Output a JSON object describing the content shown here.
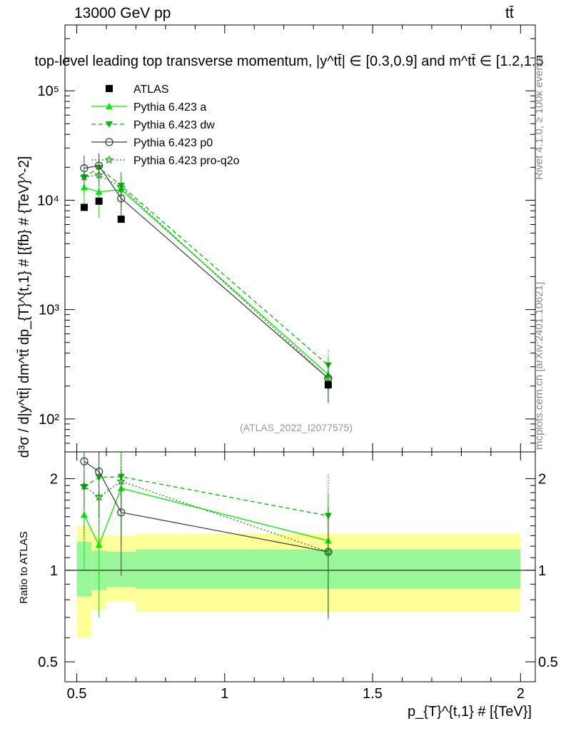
{
  "header": {
    "left": "13000 GeV pp",
    "right": "tt̄"
  },
  "side_labels": {
    "rivet": "Rivet 4.1.0, ≥ 100k events",
    "mcplots": "mcplots.cern.ch [arXiv:2401.10621]"
  },
  "chart_data": {
    "type": "line",
    "title": "top-level leading top transverse momentum, |y^tt̄| ∈ [0.3,0.9] and m^tt̄ ∈ [1.2,1.5",
    "watermark": "(ATLAS_2022_I2077575)",
    "xlabel": "p_{T}^{t,1} # [{TeV}]",
    "ylabel": "d³σ / d|y^tt̄| dm^tt̄ dp_{T}^{t,1} # [{fb} # {TeV}^-2]",
    "ratio_ylabel": "Ratio to ATLAS",
    "xlim": [
      0.46,
      2.05
    ],
    "ylim_main": [
      50,
      400000
    ],
    "ylim_ratio": [
      0.43,
      2.45
    ],
    "x_ticks": [
      0.5,
      1,
      1.5,
      2
    ],
    "x_tick_labels": [
      "0.5",
      "1",
      "1.5",
      "2"
    ],
    "y_ticks_main": [
      100,
      1000,
      10000,
      100000
    ],
    "y_tick_labels_main": [
      "10²",
      "10³",
      "10⁴",
      "10⁵"
    ],
    "y_ticks_ratio": [
      0.5,
      1,
      2
    ],
    "y_tick_labels_ratio": [
      "0.5",
      "1",
      "2"
    ],
    "bins": [
      [
        0.5,
        0.55
      ],
      [
        0.55,
        0.6
      ],
      [
        0.6,
        0.7
      ],
      [
        0.7,
        2.0
      ]
    ],
    "data": {
      "name": "ATLAS",
      "x": [
        0.525,
        0.575,
        0.65,
        1.35
      ],
      "y": [
        8600,
        9800,
        6700,
        205
      ],
      "yerr": [
        300,
        350,
        250,
        20
      ]
    },
    "band_inner": [
      [
        0.82,
        1.24
      ],
      [
        0.86,
        1.16
      ],
      [
        0.88,
        1.15
      ],
      [
        0.87,
        1.17
      ]
    ],
    "band_outer": [
      [
        0.6,
        1.4
      ],
      [
        0.74,
        1.3
      ],
      [
        0.79,
        1.3
      ],
      [
        0.73,
        1.32
      ]
    ],
    "series": [
      {
        "name": "Pythia 6.423 a",
        "color": "#00ee00",
        "dash": "",
        "marker": "triangle-up",
        "x": [
          0.525,
          0.575,
          0.65,
          1.35
        ],
        "y": [
          13100,
          11900,
          12500,
          255
        ],
        "yerr": [
          4500,
          5000,
          4500,
          110
        ],
        "ratio": [
          1.52,
          1.21,
          1.86,
          1.25
        ],
        "ratio_err": [
          0.52,
          0.51,
          0.66,
          0.54
        ]
      },
      {
        "name": "Pythia 6.423 dw",
        "color": "#00bb00",
        "dash": "6,4",
        "marker": "triangle-down",
        "x": [
          0.525,
          0.575,
          0.65,
          1.35
        ],
        "y": [
          16200,
          19800,
          13600,
          310
        ],
        "yerr": [
          5000,
          6000,
          4500,
          115
        ],
        "ratio": [
          1.88,
          2.02,
          2.03,
          1.51
        ],
        "ratio_err": [
          0.58,
          0.61,
          0.67,
          0.56
        ]
      },
      {
        "name": "Pythia 6.423 p0",
        "color": "#444444",
        "dash": "",
        "marker": "circle-open",
        "x": [
          0.525,
          0.575,
          0.65,
          1.35
        ],
        "y": [
          19600,
          20700,
          10400,
          235
        ],
        "yerr": [
          6000,
          6000,
          4000,
          95
        ],
        "ratio": [
          2.28,
          2.11,
          1.55,
          1.15
        ],
        "ratio_err": [
          0.69,
          0.62,
          0.59,
          0.46
        ]
      },
      {
        "name": "Pythia 6.423 pro-q2o",
        "color": "#009900",
        "dash": "2,3",
        "marker": "star",
        "x": [
          0.525,
          0.575,
          0.65,
          1.35
        ],
        "y": [
          16300,
          17000,
          13100,
          235
        ],
        "yerr": [
          5000,
          5000,
          4500,
          95
        ],
        "ratio": [
          1.89,
          1.74,
          1.96,
          1.15
        ],
        "ratio_err": [
          0.58,
          0.51,
          0.67,
          0.46
        ]
      }
    ]
  }
}
